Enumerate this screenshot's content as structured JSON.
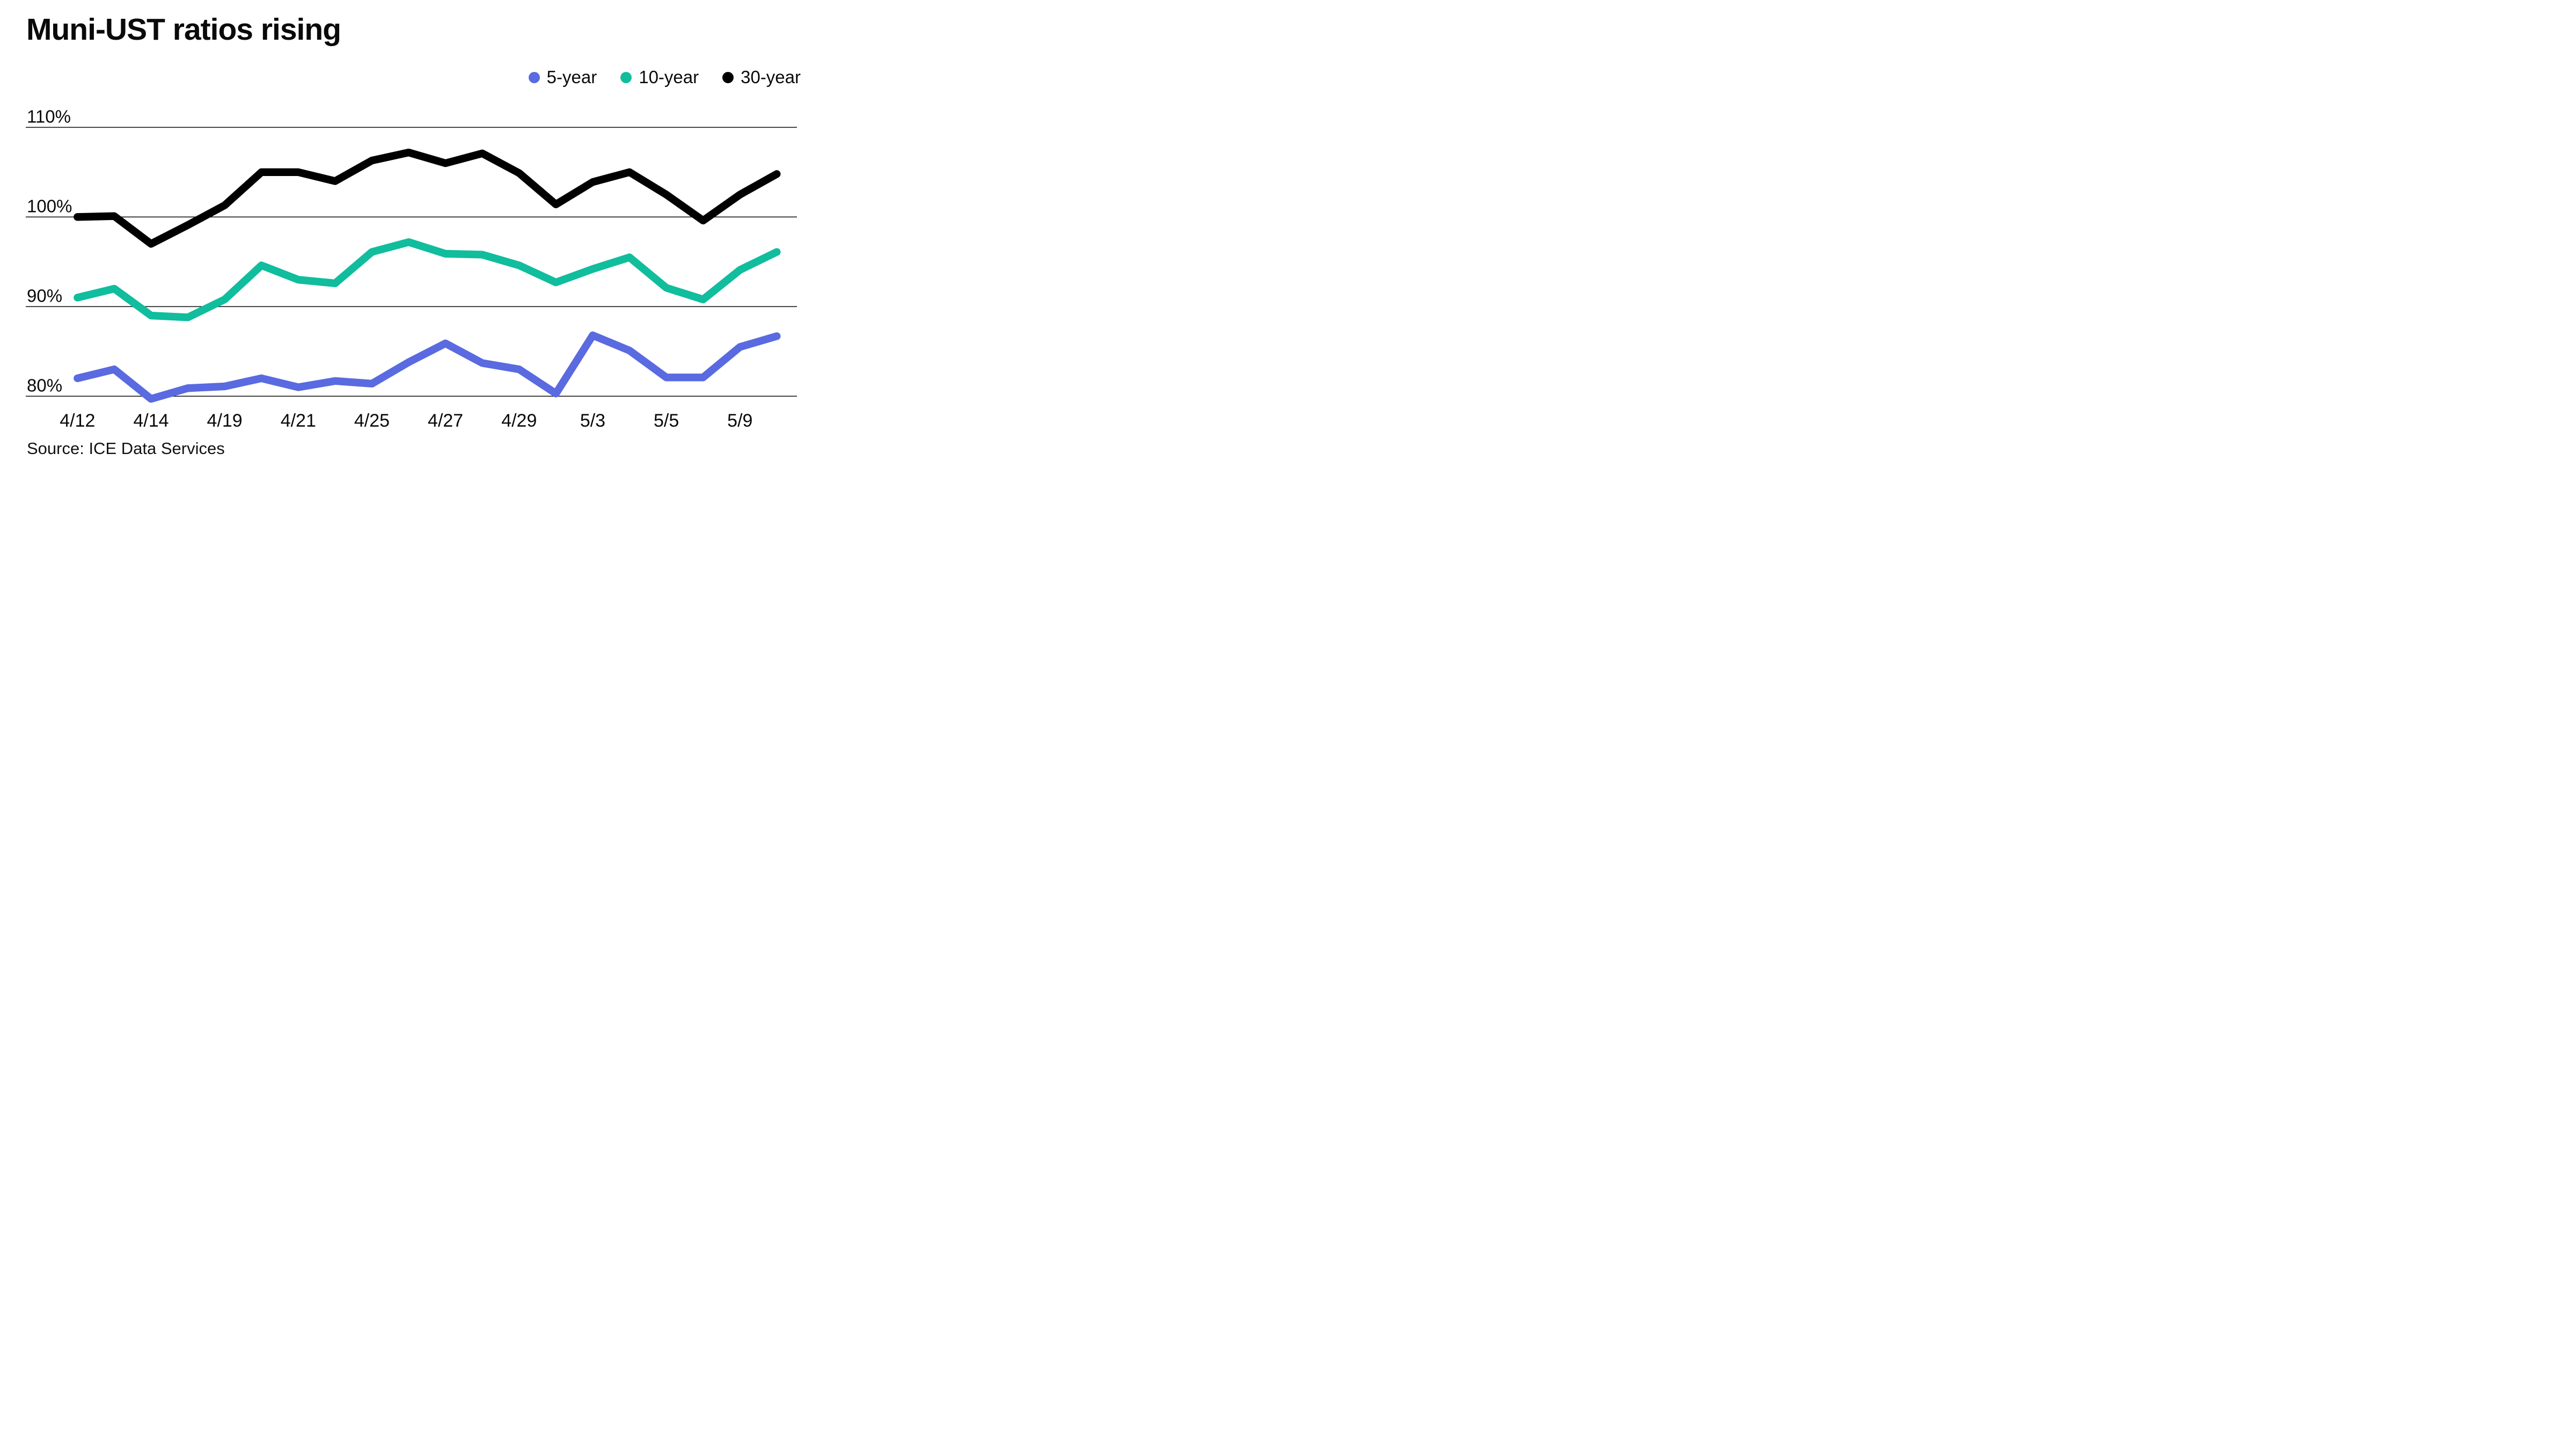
{
  "title": "Muni-UST ratios rising",
  "source_note": "Source: ICE Data Services",
  "legend": [
    {
      "label": "5-year",
      "color": "#5a6ae0"
    },
    {
      "label": "10-year",
      "color": "#10bd9d"
    },
    {
      "label": "30-year",
      "color": "#000000"
    }
  ],
  "chart_data": {
    "type": "line",
    "x": [
      "4/12",
      "4/13",
      "4/14",
      "4/18",
      "4/19",
      "4/20",
      "4/21",
      "4/22",
      "4/25",
      "4/26",
      "4/27",
      "4/28",
      "4/29",
      "5/2",
      "5/3",
      "5/4",
      "5/5",
      "5/6",
      "5/9",
      "5/10"
    ],
    "x_tick_indices": [
      0,
      2,
      4,
      6,
      8,
      10,
      12,
      14,
      16,
      18
    ],
    "x_tick_labels": [
      "4/12",
      "4/14",
      "4/19",
      "4/21",
      "4/25",
      "4/27",
      "4/29",
      "5/3",
      "5/5",
      "5/9"
    ],
    "series": [
      {
        "name": "5-year",
        "color": "#5a6ae0",
        "values": [
          82.0,
          83.0,
          79.7,
          80.9,
          81.1,
          82.0,
          81.0,
          81.7,
          81.4,
          83.8,
          85.9,
          83.7,
          83.0,
          80.3,
          86.8,
          85.1,
          82.1,
          82.1,
          85.5,
          86.7
        ]
      },
      {
        "name": "10-year",
        "color": "#10bd9d",
        "values": [
          91.0,
          92.0,
          89.0,
          88.8,
          90.8,
          94.6,
          93.0,
          92.6,
          96.1,
          97.2,
          95.9,
          95.8,
          94.6,
          92.7,
          94.2,
          95.5,
          92.1,
          90.8,
          94.1,
          96.1
        ]
      },
      {
        "name": "30-year",
        "color": "#000000",
        "values": [
          100.0,
          100.1,
          97.0,
          99.1,
          101.3,
          105.0,
          105.0,
          104.0,
          106.3,
          107.2,
          106.0,
          107.1,
          104.9,
          101.4,
          103.9,
          105.0,
          102.5,
          99.6,
          102.5,
          104.8
        ]
      }
    ],
    "yticks": [
      {
        "value": 110,
        "label": "110%"
      },
      {
        "value": 100,
        "label": "100%"
      },
      {
        "value": 90,
        "label": "90%"
      },
      {
        "value": 80,
        "label": "80%"
      }
    ],
    "ylim": [
      78.5,
      111.5
    ],
    "grid": true,
    "legend_position": "top-right",
    "title": "Muni-UST ratios rising",
    "xlabel": "",
    "ylabel": ""
  }
}
